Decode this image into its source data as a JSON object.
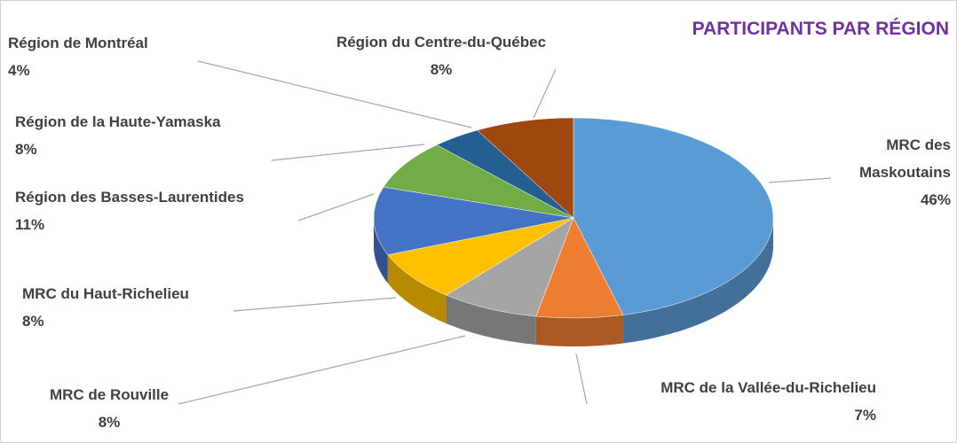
{
  "chart_data": {
    "type": "pie",
    "title": "PARTICIPANTS PAR RÉGION",
    "three_d": true,
    "categories": [
      "MRC des Maskoutains",
      "MRC de la Vallée-du-Richelieu",
      "MRC de Rouville",
      "MRC du Haut-Richelieu",
      "Région des Basses-Laurentides",
      "Région de la Haute-Yamaska",
      "Région de Montréal",
      "Région du Centre-du-Québec"
    ],
    "values": [
      46,
      7,
      8,
      8,
      11,
      8,
      4,
      8
    ],
    "value_labels": [
      "46%",
      "7%",
      "8%",
      "8%",
      "11%",
      "8%",
      "4%",
      "8%"
    ],
    "colors": [
      "#5B9BD5",
      "#ED7D31",
      "#A5A5A5",
      "#FFC000",
      "#4472C4",
      "#70AD47",
      "#255E91",
      "#9E480E"
    ]
  }
}
